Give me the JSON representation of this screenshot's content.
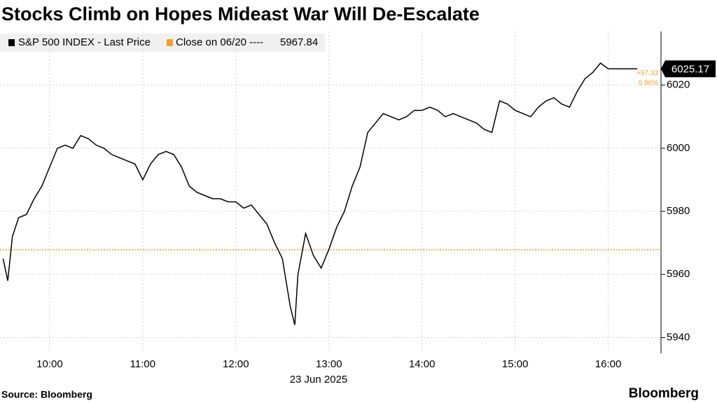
{
  "chart_data": {
    "type": "line",
    "title": "Stocks Climb on Hopes Mideast War Will De-Escalate",
    "x_label": "23 Jun 2025",
    "source": "Source: Bloomberg",
    "brand": "Bloomberg",
    "x": [
      "09:30",
      "09:33",
      "09:36",
      "09:40",
      "09:45",
      "09:50",
      "09:55",
      "10:00",
      "10:05",
      "10:10",
      "10:15",
      "10:20",
      "10:25",
      "10:30",
      "10:35",
      "10:40",
      "10:45",
      "10:50",
      "10:55",
      "11:00",
      "11:05",
      "11:10",
      "11:15",
      "11:20",
      "11:25",
      "11:30",
      "11:35",
      "11:40",
      "11:45",
      "11:50",
      "11:55",
      "12:00",
      "12:05",
      "12:10",
      "12:15",
      "12:20",
      "12:25",
      "12:30",
      "12:35",
      "12:38",
      "12:40",
      "12:45",
      "12:50",
      "12:55",
      "13:00",
      "13:05",
      "13:10",
      "13:15",
      "13:20",
      "13:25",
      "13:30",
      "13:35",
      "13:40",
      "13:45",
      "13:50",
      "13:55",
      "14:00",
      "14:05",
      "14:10",
      "14:15",
      "14:20",
      "14:25",
      "14:30",
      "14:35",
      "14:40",
      "14:45",
      "14:50",
      "14:55",
      "15:00",
      "15:05",
      "15:10",
      "15:15",
      "15:20",
      "15:25",
      "15:30",
      "15:35",
      "15:40",
      "15:45",
      "15:50",
      "15:55",
      "16:00"
    ],
    "series": [
      {
        "name": "S&P 500 INDEX - Last Price",
        "color": "#000000",
        "values": [
          5965,
          5958,
          5972,
          5978,
          5979,
          5984,
          5988,
          5994,
          6000,
          6001,
          6000,
          6004,
          6003,
          6001,
          6000,
          5998,
          5997,
          5996,
          5995,
          5990,
          5995,
          5998,
          5999,
          5998,
          5994,
          5988,
          5986,
          5985,
          5984,
          5984,
          5983,
          5983,
          5981,
          5982,
          5979,
          5976,
          5970,
          5965,
          5950,
          5944,
          5960,
          5973,
          5966,
          5962,
          5968,
          5975,
          5980,
          5988,
          5994,
          6005,
          6008,
          6011,
          6010,
          6009,
          6010,
          6012,
          6012,
          6013,
          6012,
          6010,
          6011,
          6010,
          6009,
          6008,
          6006,
          6005,
          6015,
          6014,
          6012,
          6011,
          6010,
          6013,
          6015,
          6016,
          6014,
          6013,
          6018,
          6022,
          6024,
          6027,
          6025.17
        ]
      }
    ],
    "reference_line": {
      "name": "Close on 06/20 ----",
      "value": 5967.84,
      "color": "#f0a030"
    },
    "annotations": [
      "+57.33",
      "0.96%"
    ],
    "xlim": [
      "09:28",
      "16:34"
    ],
    "xticks": [
      "10:00",
      "11:00",
      "12:00",
      "13:00",
      "14:00",
      "15:00",
      "16:00"
    ],
    "ylim": [
      5935,
      6037
    ],
    "yticks": [
      5940,
      5960,
      5980,
      6000,
      6020
    ],
    "grid": true
  }
}
